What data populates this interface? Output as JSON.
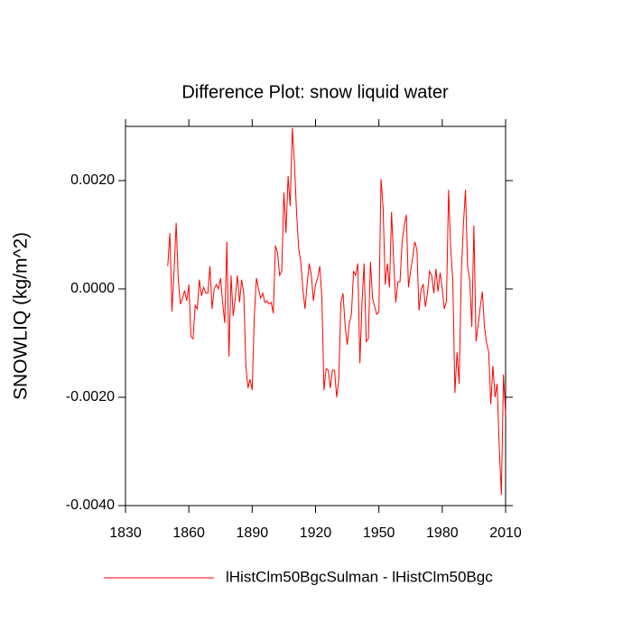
{
  "chart_data": {
    "type": "line",
    "title": "Difference Plot: snow liquid water",
    "ylabel": "SNOWLIQ  (kg/m^2)",
    "x": [
      1850,
      1851,
      1852,
      1853,
      1854,
      1855,
      1856,
      1857,
      1858,
      1859,
      1860,
      1861,
      1862,
      1863,
      1864,
      1865,
      1866,
      1867,
      1868,
      1869,
      1870,
      1871,
      1872,
      1873,
      1874,
      1875,
      1876,
      1877,
      1878,
      1879,
      1880,
      1881,
      1882,
      1883,
      1884,
      1885,
      1886,
      1887,
      1888,
      1889,
      1890,
      1891,
      1892,
      1893,
      1894,
      1895,
      1896,
      1897,
      1898,
      1899,
      1900,
      1901,
      1902,
      1903,
      1904,
      1905,
      1906,
      1907,
      1908,
      1909,
      1910,
      1911,
      1912,
      1913,
      1914,
      1915,
      1916,
      1917,
      1918,
      1919,
      1920,
      1921,
      1922,
      1923,
      1924,
      1925,
      1926,
      1927,
      1928,
      1929,
      1930,
      1931,
      1932,
      1933,
      1934,
      1935,
      1936,
      1937,
      1938,
      1939,
      1940,
      1941,
      1942,
      1943,
      1944,
      1945,
      1946,
      1947,
      1948,
      1949,
      1950,
      1951,
      1952,
      1953,
      1954,
      1955,
      1956,
      1957,
      1958,
      1959,
      1960,
      1961,
      1962,
      1963,
      1964,
      1965,
      1966,
      1967,
      1968,
      1969,
      1970,
      1971,
      1972,
      1973,
      1974,
      1975,
      1976,
      1977,
      1978,
      1979,
      1980,
      1981,
      1982,
      1983,
      1984,
      1985,
      1986,
      1987,
      1988,
      1989,
      1990,
      1991,
      1992,
      1993,
      1994,
      1995,
      1996,
      1997,
      1998,
      1999,
      2000,
      2001,
      2002,
      2003,
      2004,
      2005,
      2006,
      2007,
      2008,
      2009,
      2010
    ],
    "series": [
      {
        "name": "lHistClm50BgcSulman - lHistClm50Bgc",
        "color": "#ff0000",
        "values": [
          0.00042,
          0.00103,
          -0.00042,
          0.00033,
          0.00122,
          0.00017,
          -0.00028,
          -0.00017,
          -3e-05,
          -0.00022,
          8e-05,
          -0.00088,
          -0.00092,
          -0.0003,
          -0.00037,
          0.00017,
          -0.00013,
          3e-05,
          -8e-05,
          -8e-05,
          0.00042,
          -0.00037,
          0,
          8e-05,
          0,
          0.0002,
          -0.00025,
          -0.00063,
          0.00087,
          -0.00125,
          0.00025,
          -0.0005,
          -0.00017,
          0.00025,
          -0.00025,
          0.00017,
          -8e-05,
          -0.00142,
          -0.00183,
          -0.00167,
          -0.00187,
          -0.0005,
          0.0002,
          0,
          -0.00017,
          -8e-05,
          -0.00025,
          -0.00022,
          -0.00028,
          -0.00025,
          -0.00045,
          0.0008,
          0.00067,
          0.00025,
          0.00033,
          0.00178,
          0.00103,
          0.00208,
          0.00153,
          0.00297,
          0.00233,
          0.00142,
          0.00075,
          0.0005,
          0,
          -0.00037,
          8e-05,
          0.00047,
          0.00025,
          -0.00022,
          8e-05,
          0.0002,
          0.00042,
          -0.00017,
          -0.00187,
          -0.00147,
          -0.0015,
          -0.00183,
          -0.0015,
          -0.0015,
          -0.002,
          -0.00167,
          -0.00025,
          -8e-05,
          -0.00067,
          -0.00103,
          -0.00063,
          -0.00047,
          0.00033,
          0.00025,
          0.00047,
          -0.00137,
          -0.00025,
          0.00047,
          -0.00097,
          -0.00092,
          0.0005,
          -0.00017,
          -0.00033,
          -0.00047,
          -0.00042,
          0.00203,
          0.0015,
          8e-05,
          0.00047,
          3e-05,
          0.00142,
          0.0005,
          -0.00025,
          0.00013,
          0.00013,
          0.00087,
          0.00117,
          0.00137,
          3e-05,
          0.00033,
          0.00058,
          0.00087,
          0.00073,
          -0.0004,
          0,
          8e-05,
          -0.00033,
          -8e-05,
          0.00033,
          0.00025,
          -8e-05,
          0.00037,
          -5e-05,
          0.0003,
          0,
          -0.00037,
          -0.00022,
          0.00183,
          0.00075,
          0.00017,
          -0.00192,
          -0.00117,
          -0.00175,
          0.00025,
          0.00117,
          0.00183,
          0.00042,
          0.00017,
          -0.0007,
          0.00117,
          -0.00097,
          -0.00067,
          -0.00033,
          -5e-05,
          -0.0007,
          -0.001,
          -0.00117,
          -0.00213,
          -0.00142,
          -0.002,
          -0.00175,
          -0.00292,
          -0.0038,
          -0.00158,
          -0.00233
        ]
      }
    ],
    "xlim": [
      1830,
      2010
    ],
    "xticks": [
      1830,
      1860,
      1890,
      1920,
      1950,
      1980,
      2010
    ],
    "ylim": [
      -0.004,
      0.003
    ],
    "yticks": [
      {
        "value": -0.004,
        "label": "-0.0040"
      },
      {
        "value": -0.002,
        "label": "-0.0020"
      },
      {
        "value": 0,
        "label": "0.0000"
      },
      {
        "value": 0.002,
        "label": "0.0020"
      }
    ],
    "legend": "bottom"
  }
}
